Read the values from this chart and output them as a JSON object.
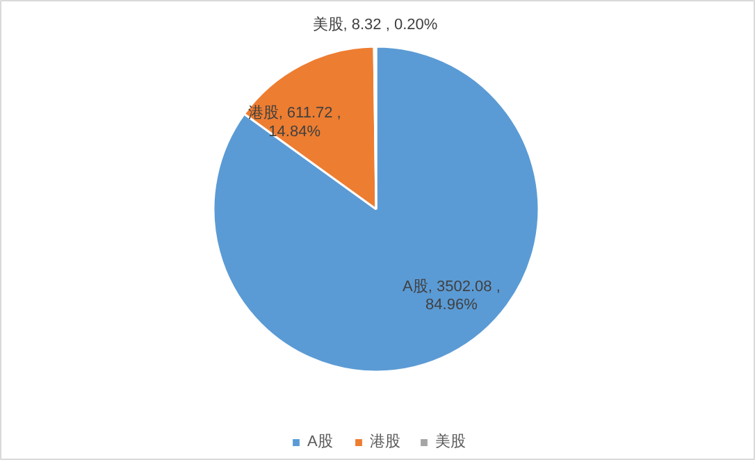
{
  "chart_data": {
    "type": "pie",
    "categories": [
      "A股",
      "港股",
      "美股"
    ],
    "values": [
      3502.08,
      611.72,
      8.32
    ],
    "colors": [
      "#5b9bd5",
      "#ed7d31",
      "#a5a5a5"
    ],
    "value_labels": [
      "A股, 3502.08 ,\n84.96%",
      "港股, 611.72 ,\n14.84%",
      "美股, 8.32 , 0.20%"
    ],
    "legend": "bottom"
  }
}
